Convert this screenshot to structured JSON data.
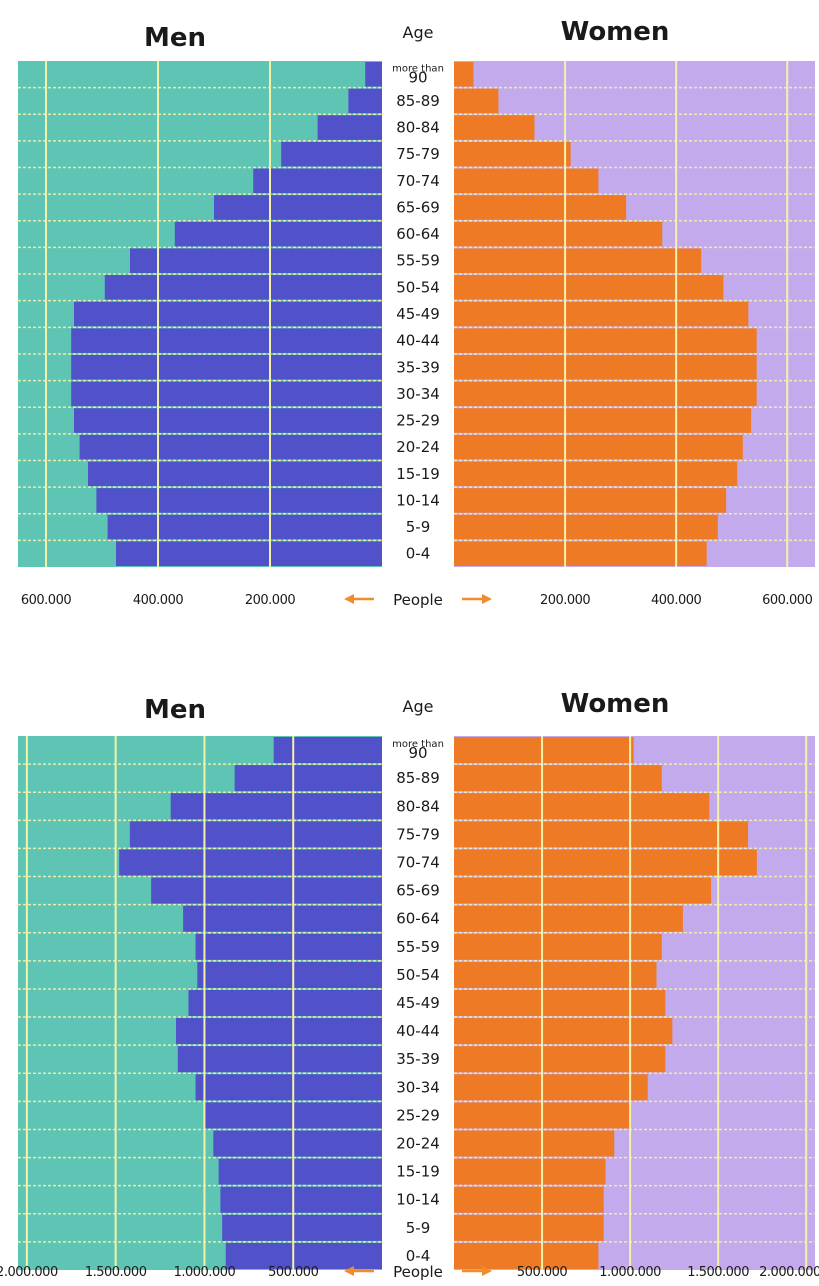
{
  "chart_data": [
    {
      "type": "bar",
      "orientation": "population-pyramid",
      "title_left": "Men",
      "title_right": "Women",
      "center_header": "Age",
      "axis_label": "People",
      "age_groups": [
        "0-4",
        "5-9",
        "10-14",
        "15-19",
        "20-24",
        "25-29",
        "30-34",
        "35-39",
        "40-44",
        "45-49",
        "50-54",
        "55-59",
        "60-64",
        "65-69",
        "70-74",
        "75-79",
        "80-84",
        "85-89",
        "more than 90"
      ],
      "series": [
        {
          "name": "Men",
          "values": [
            475000,
            490000,
            510000,
            525000,
            540000,
            550000,
            555000,
            555000,
            555000,
            550000,
            495000,
            450000,
            370000,
            300000,
            230000,
            180000,
            115000,
            60000,
            30000
          ]
        },
        {
          "name": "Women",
          "values": [
            455000,
            475000,
            490000,
            510000,
            520000,
            535000,
            545000,
            545000,
            545000,
            530000,
            485000,
            445000,
            375000,
            310000,
            260000,
            210000,
            145000,
            80000,
            35000
          ]
        }
      ],
      "xlim": [
        0,
        650000
      ],
      "left_ticks": [
        {
          "value": 600000,
          "label": "600.000"
        },
        {
          "value": 400000,
          "label": "400.000"
        },
        {
          "value": 200000,
          "label": "200.000"
        }
      ],
      "right_ticks": [
        {
          "value": 200000,
          "label": "200.000"
        },
        {
          "value": 400000,
          "label": "400.000"
        },
        {
          "value": 600000,
          "label": "600.000"
        }
      ],
      "colors": {
        "men_bar": "#5151c9",
        "women_bar": "#ee7a26",
        "men_bg": "#5ec4b4",
        "women_bg": "#c3aaec",
        "grid": "#f3f2a8"
      }
    },
    {
      "type": "bar",
      "orientation": "population-pyramid",
      "title_left": "Men",
      "title_right": "Women",
      "center_header": "Age",
      "axis_label": "People",
      "age_groups": [
        "0-4",
        "5-9",
        "10-14",
        "15-19",
        "20-24",
        "25-29",
        "30-34",
        "35-39",
        "40-44",
        "45-49",
        "50-54",
        "55-59",
        "60-64",
        "65-69",
        "70-74",
        "75-79",
        "80-84",
        "85-89",
        "more than 90"
      ],
      "series": [
        {
          "name": "Men",
          "values": [
            880000,
            900000,
            910000,
            920000,
            950000,
            1000000,
            1050000,
            1150000,
            1160000,
            1090000,
            1040000,
            1050000,
            1120000,
            1300000,
            1480000,
            1420000,
            1190000,
            830000,
            610000
          ]
        },
        {
          "name": "Women",
          "values": [
            820000,
            850000,
            850000,
            860000,
            910000,
            1000000,
            1100000,
            1200000,
            1240000,
            1200000,
            1150000,
            1180000,
            1300000,
            1460000,
            1720000,
            1670000,
            1450000,
            1180000,
            1020000
          ]
        }
      ],
      "xlim": [
        0,
        2050000
      ],
      "left_ticks": [
        {
          "value": 2000000,
          "label": "2.000.000"
        },
        {
          "value": 1500000,
          "label": "1.500.000"
        },
        {
          "value": 1000000,
          "label": "1.000.000"
        },
        {
          "value": 500000,
          "label": "500.000"
        }
      ],
      "right_ticks": [
        {
          "value": 500000,
          "label": "500.000"
        },
        {
          "value": 1000000,
          "label": "1.000.000"
        },
        {
          "value": 1500000,
          "label": "1.500.000"
        },
        {
          "value": 2000000,
          "label": "2.000.000"
        }
      ],
      "colors": {
        "men_bar": "#5151c9",
        "women_bar": "#ee7a26",
        "men_bg": "#5ec4b4",
        "women_bg": "#c3aaec",
        "grid": "#f3f2a8"
      }
    }
  ]
}
